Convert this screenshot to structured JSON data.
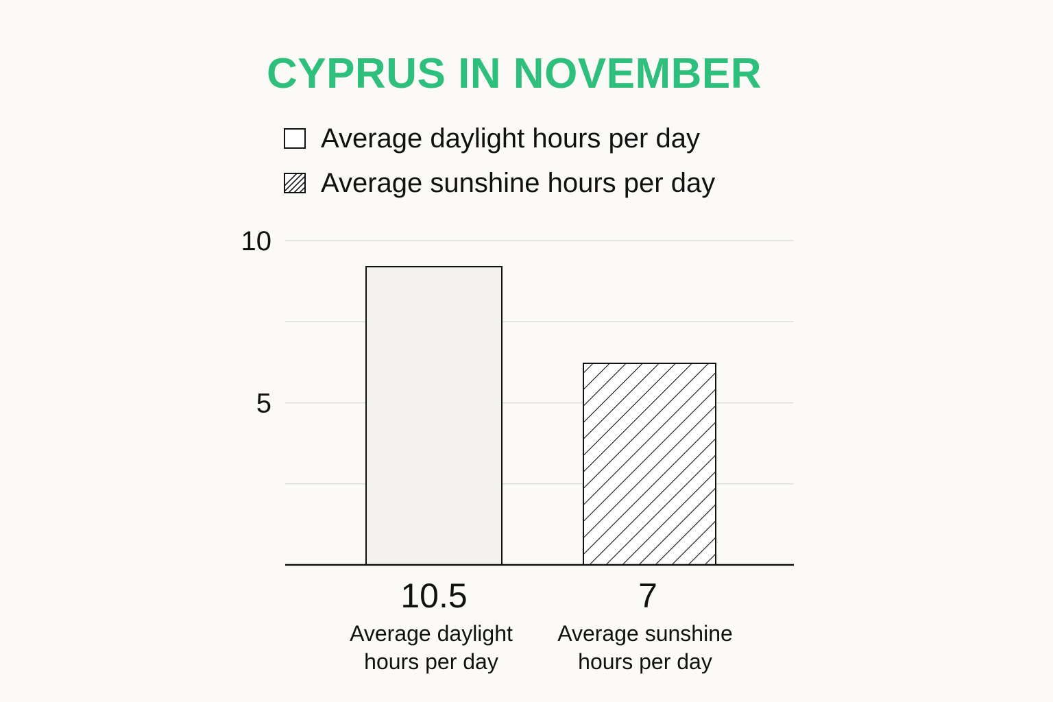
{
  "chart_data": {
    "type": "bar",
    "title": "CYPRUS IN NOVEMBER",
    "categories": [
      "Average daylight hours per day",
      "Average sunshine hours per day"
    ],
    "values": [
      10.5,
      7
    ],
    "value_labels": [
      "10.5",
      "7"
    ],
    "bar_captions": [
      [
        "Average daylight",
        "hours per day"
      ],
      [
        "Average sunshine",
        "hours per day"
      ]
    ],
    "y_ticks": [
      {
        "value": 5,
        "label": "5"
      },
      {
        "value": 10,
        "label": "10"
      }
    ],
    "legend": [
      {
        "label": "Average daylight hours per day",
        "fill": "plain"
      },
      {
        "label": "Average sunshine hours per day",
        "fill": "hatched"
      }
    ],
    "legend_position": "top",
    "grid": true,
    "colors": {
      "title": "#2fbf7c",
      "bar_fill": "#f3f2ef",
      "outline": "#111111",
      "grid": "#dddddd",
      "background": "#fbfaf7"
    }
  }
}
